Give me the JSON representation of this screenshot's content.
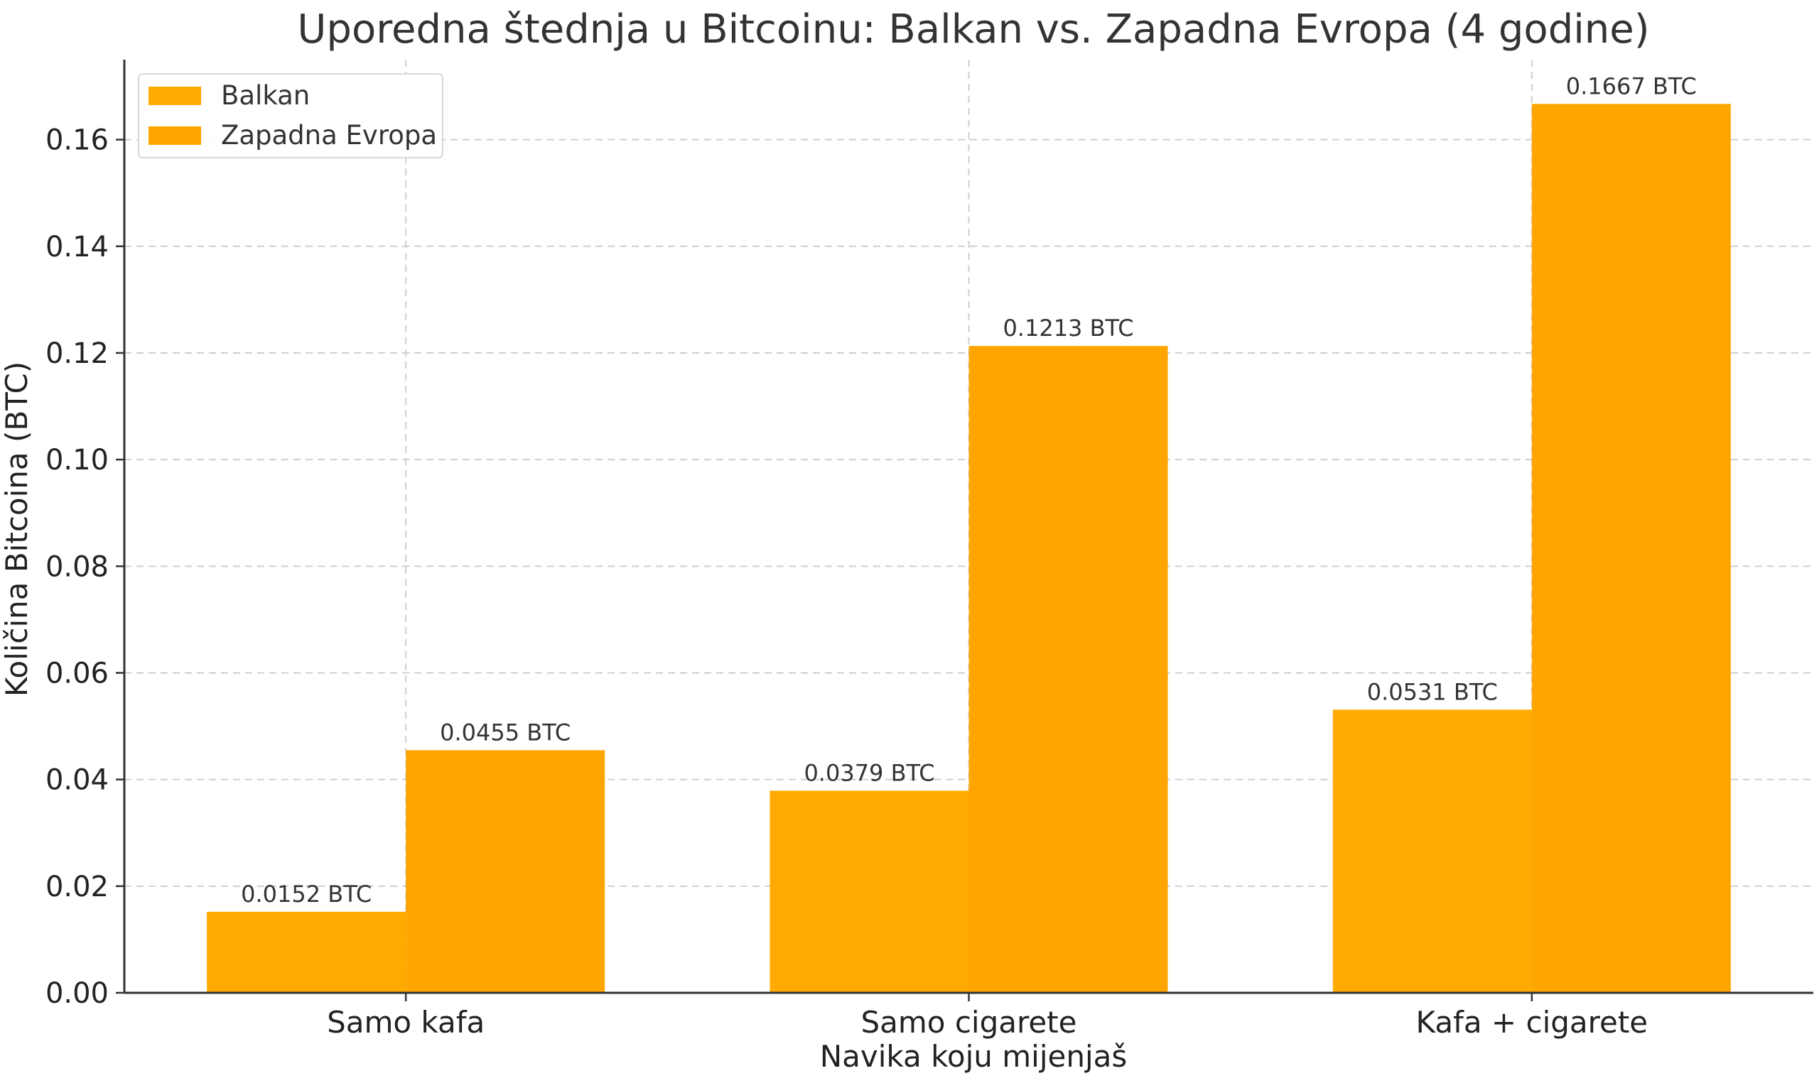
{
  "chart_data": {
    "type": "bar",
    "title": "Uporedna štednja u Bitcoinu: Balkan vs. Zapadna Evropa (4 godine)",
    "xlabel": "Navika koju mijenjaš",
    "ylabel": "Količina Bitcoina (BTC)",
    "categories": [
      "Samo kafa",
      "Samo cigarete",
      "Kafa + cigarete"
    ],
    "series": [
      {
        "name": "Balkan",
        "values": [
          0.0152,
          0.0379,
          0.0531
        ],
        "labels": [
          "0.0152 BTC",
          "0.0379 BTC",
          "0.0531 BTC"
        ],
        "color": "#FFAA00"
      },
      {
        "name": "Zapadna Evropa",
        "values": [
          0.0455,
          0.1213,
          0.1667
        ],
        "labels": [
          "0.0455 BTC",
          "0.1213 BTC",
          "0.1667 BTC"
        ],
        "color": "#FFA500"
      }
    ],
    "ylim": [
      0,
      0.175
    ],
    "yticks": [
      0.0,
      0.02,
      0.04,
      0.06,
      0.08,
      0.1,
      0.12,
      0.14,
      0.16
    ],
    "ytick_labels": [
      "0.00",
      "0.02",
      "0.04",
      "0.06",
      "0.08",
      "0.10",
      "0.12",
      "0.14",
      "0.16"
    ],
    "grid": true,
    "legend_position": "top-left"
  }
}
